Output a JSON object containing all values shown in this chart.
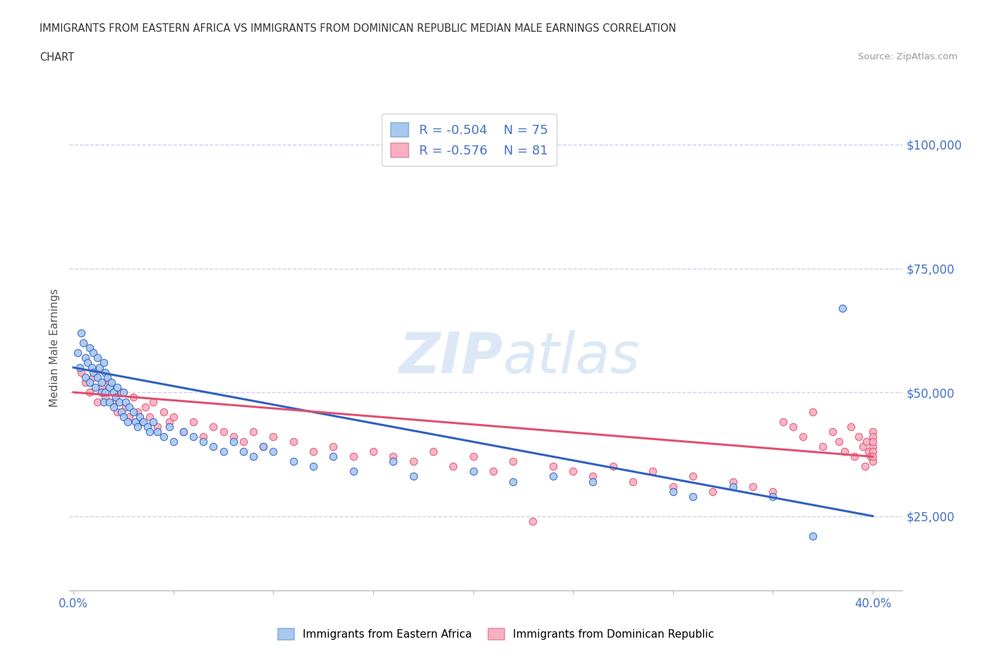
{
  "title_line1": "IMMIGRANTS FROM EASTERN AFRICA VS IMMIGRANTS FROM DOMINICAN REPUBLIC MEDIAN MALE EARNINGS CORRELATION",
  "title_line2": "CHART",
  "source_text": "Source: ZipAtlas.com",
  "ylabel": "Median Male Earnings",
  "xlim": [
    -0.002,
    0.415
  ],
  "ylim": [
    10000,
    108000
  ],
  "yticks": [
    25000,
    50000,
    75000,
    100000
  ],
  "ytick_labels": [
    "$25,000",
    "$50,000",
    "$75,000",
    "$100,000"
  ],
  "xticks": [
    0.0,
    0.05,
    0.1,
    0.15,
    0.2,
    0.25,
    0.3,
    0.35,
    0.4
  ],
  "color_blue": "#a8c8f0",
  "color_pink": "#f8b0c0",
  "color_blue_line": "#3060c0",
  "color_pink_line": "#e05070",
  "color_text_blue": "#4472c4",
  "watermark_color": "#dce8f5",
  "background_color": "#ffffff",
  "grid_color": "#c8d4e8",
  "blue_scatter_x": [
    0.002,
    0.003,
    0.004,
    0.005,
    0.006,
    0.006,
    0.007,
    0.008,
    0.008,
    0.009,
    0.01,
    0.01,
    0.011,
    0.012,
    0.012,
    0.013,
    0.014,
    0.014,
    0.015,
    0.015,
    0.016,
    0.016,
    0.017,
    0.018,
    0.018,
    0.019,
    0.02,
    0.02,
    0.021,
    0.022,
    0.023,
    0.024,
    0.025,
    0.025,
    0.026,
    0.027,
    0.028,
    0.03,
    0.031,
    0.032,
    0.033,
    0.035,
    0.037,
    0.038,
    0.04,
    0.042,
    0.045,
    0.048,
    0.05,
    0.055,
    0.06,
    0.065,
    0.07,
    0.075,
    0.08,
    0.085,
    0.09,
    0.095,
    0.1,
    0.11,
    0.12,
    0.13,
    0.14,
    0.16,
    0.17,
    0.2,
    0.22,
    0.24,
    0.26,
    0.3,
    0.31,
    0.33,
    0.35,
    0.37,
    0.385
  ],
  "blue_scatter_y": [
    58000,
    55000,
    62000,
    60000,
    57000,
    53000,
    56000,
    59000,
    52000,
    55000,
    54000,
    58000,
    51000,
    53000,
    57000,
    55000,
    52000,
    50000,
    56000,
    48000,
    54000,
    50000,
    53000,
    51000,
    48000,
    52000,
    50000,
    47000,
    49000,
    51000,
    48000,
    46000,
    50000,
    45000,
    48000,
    44000,
    47000,
    46000,
    44000,
    43000,
    45000,
    44000,
    43000,
    42000,
    44000,
    42000,
    41000,
    43000,
    40000,
    42000,
    41000,
    40000,
    39000,
    38000,
    40000,
    38000,
    37000,
    39000,
    38000,
    36000,
    35000,
    37000,
    34000,
    36000,
    33000,
    34000,
    32000,
    33000,
    32000,
    30000,
    29000,
    31000,
    29000,
    21000,
    67000
  ],
  "pink_scatter_x": [
    0.004,
    0.006,
    0.008,
    0.01,
    0.012,
    0.014,
    0.016,
    0.018,
    0.02,
    0.022,
    0.024,
    0.026,
    0.028,
    0.03,
    0.032,
    0.034,
    0.036,
    0.038,
    0.04,
    0.042,
    0.045,
    0.048,
    0.05,
    0.055,
    0.06,
    0.065,
    0.07,
    0.075,
    0.08,
    0.085,
    0.09,
    0.095,
    0.1,
    0.11,
    0.12,
    0.13,
    0.14,
    0.15,
    0.16,
    0.17,
    0.18,
    0.19,
    0.2,
    0.21,
    0.22,
    0.23,
    0.24,
    0.25,
    0.26,
    0.27,
    0.28,
    0.29,
    0.3,
    0.31,
    0.32,
    0.33,
    0.34,
    0.35,
    0.355,
    0.36,
    0.365,
    0.37,
    0.375,
    0.38,
    0.383,
    0.386,
    0.389,
    0.391,
    0.393,
    0.395,
    0.396,
    0.397,
    0.398,
    0.399,
    0.4,
    0.4,
    0.4,
    0.4,
    0.4,
    0.4,
    0.4
  ],
  "pink_scatter_y": [
    54000,
    52000,
    50000,
    53000,
    48000,
    51000,
    49000,
    52000,
    48000,
    46000,
    50000,
    47000,
    45000,
    49000,
    46000,
    44000,
    47000,
    45000,
    48000,
    43000,
    46000,
    44000,
    45000,
    42000,
    44000,
    41000,
    43000,
    42000,
    41000,
    40000,
    42000,
    39000,
    41000,
    40000,
    38000,
    39000,
    37000,
    38000,
    37000,
    36000,
    38000,
    35000,
    37000,
    34000,
    36000,
    24000,
    35000,
    34000,
    33000,
    35000,
    32000,
    34000,
    31000,
    33000,
    30000,
    32000,
    31000,
    30000,
    44000,
    43000,
    41000,
    46000,
    39000,
    42000,
    40000,
    38000,
    43000,
    37000,
    41000,
    39000,
    35000,
    40000,
    38000,
    37000,
    42000,
    39000,
    36000,
    41000,
    38000,
    40000,
    37000
  ],
  "blue_trend_x": [
    0.0,
    0.4
  ],
  "blue_trend_y": [
    55000,
    25000
  ],
  "pink_trend_x": [
    0.0,
    0.4
  ],
  "pink_trend_y": [
    50000,
    37000
  ],
  "legend_R1": "R = -0.504",
  "legend_N1": "N = 75",
  "legend_R2": "R = -0.576",
  "legend_N2": "N = 81",
  "legend_label1": "Immigrants from Eastern Africa",
  "legend_label2": "Immigrants from Dominican Republic"
}
